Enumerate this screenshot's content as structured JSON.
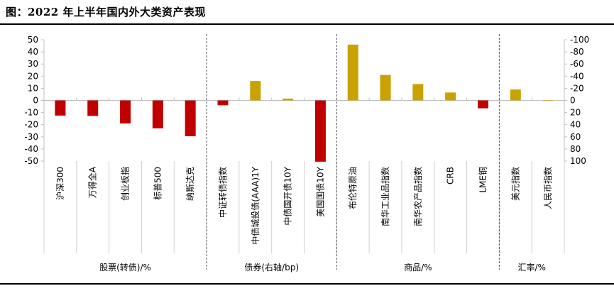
{
  "title": "图：2022 年上半年国内外大类资产表现",
  "chart_data": {
    "type": "bar",
    "title": "图：2022 年上半年国内外大类资产表现",
    "left_axis": {
      "ticks": [
        50,
        40,
        30,
        20,
        10,
        0,
        -10,
        -20,
        -30,
        -40,
        -50
      ],
      "range": [
        -50,
        50
      ]
    },
    "right_axis": {
      "ticks": [
        -100,
        -80,
        -60,
        -40,
        -20,
        0,
        20,
        40,
        60,
        80,
        100
      ],
      "range": [
        -100,
        100
      ],
      "inverted": true
    },
    "groups": [
      {
        "name": "股票(转债)/%",
        "axis": "left",
        "categories": [
          "沪深300",
          "万得全A",
          "创业板指",
          "标普500",
          "纳斯达克"
        ]
      },
      {
        "name": "债券(右轴/bp)",
        "axis": "right",
        "categories": [
          "中证转债指数",
          "中债城投债(AAA)1Y",
          "中债国开债10Y",
          "美国国债10Y"
        ]
      },
      {
        "name": "商品/%",
        "axis": "left",
        "categories": [
          "布伦特原油",
          "南华工业品指数",
          "南华农产品指数",
          "CRB",
          "LME铜"
        ]
      },
      {
        "name": "汇率/%",
        "axis": "left",
        "categories": [
          "美元指数",
          "人民币指数"
        ]
      }
    ],
    "bars": [
      {
        "category": "沪深300",
        "value": -12.5,
        "axis": "left",
        "color": "#c00000"
      },
      {
        "category": "万得全A",
        "value": -12.8,
        "axis": "left",
        "color": "#c00000"
      },
      {
        "category": "创业板指",
        "value": -19,
        "axis": "left",
        "color": "#c00000"
      },
      {
        "category": "标普500",
        "value": -23,
        "axis": "left",
        "color": "#c00000"
      },
      {
        "category": "纳斯达克",
        "value": -29.5,
        "axis": "left",
        "color": "#c00000"
      },
      {
        "category": "中证转债指数",
        "value": 8,
        "axis": "right",
        "color": "#c00000"
      },
      {
        "category": "中债城投债(AAA)1Y",
        "value": -32,
        "axis": "right",
        "color": "#c9a100"
      },
      {
        "category": "中债国开债10Y",
        "value": -3,
        "axis": "right",
        "color": "#c9a100"
      },
      {
        "category": "美国国债10Y",
        "value": 101,
        "axis": "right",
        "color": "#c00000"
      },
      {
        "category": "布伦特原油",
        "value": 46,
        "axis": "left",
        "color": "#c9a100"
      },
      {
        "category": "南华工业品指数",
        "value": 21,
        "axis": "left",
        "color": "#c9a100"
      },
      {
        "category": "南华农产品指数",
        "value": 13.5,
        "axis": "left",
        "color": "#c9a100"
      },
      {
        "category": "CRB",
        "value": 6.5,
        "axis": "left",
        "color": "#c9a100"
      },
      {
        "category": "LME铜",
        "value": -6.5,
        "axis": "left",
        "color": "#c00000"
      },
      {
        "category": "美元指数",
        "value": 9,
        "axis": "left",
        "color": "#c9a100"
      },
      {
        "category": "人民币指数",
        "value": -0.3,
        "axis": "left",
        "color": "#c9a100"
      }
    ]
  }
}
